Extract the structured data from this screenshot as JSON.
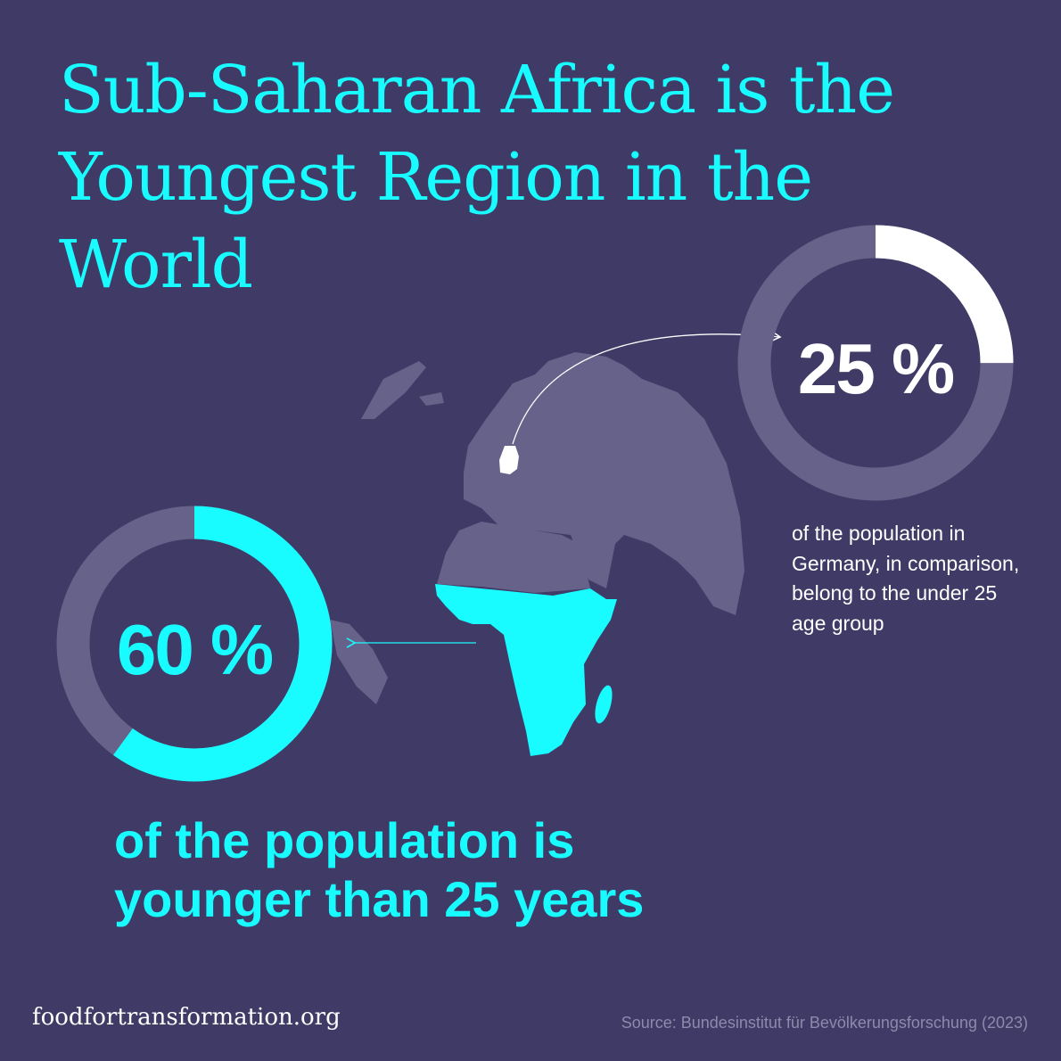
{
  "title": "Sub-Saharan Africa is the Youngest Region in the World",
  "colors": {
    "background": "#403a66",
    "accent": "#18fbff",
    "track": "#67628a",
    "germany": "#ffffff"
  },
  "chart_data": [
    {
      "type": "pie",
      "variant": "donut",
      "label": "Germany",
      "value": 25,
      "unit": "%",
      "display": "25 %",
      "caption": "of the population in Germany, in comparison, belong to the under 25 age group",
      "color": "#ffffff"
    },
    {
      "type": "pie",
      "variant": "donut",
      "label": "Sub-Saharan Africa",
      "value": 60,
      "unit": "%",
      "display": "60 %",
      "caption": "of the population is younger than 25 years",
      "color": "#18fbff"
    }
  ],
  "footer": {
    "site": "foodfortransformation.org",
    "source": "Source: Bundesinstitut für Bevölkerungsforschung (2023)"
  }
}
